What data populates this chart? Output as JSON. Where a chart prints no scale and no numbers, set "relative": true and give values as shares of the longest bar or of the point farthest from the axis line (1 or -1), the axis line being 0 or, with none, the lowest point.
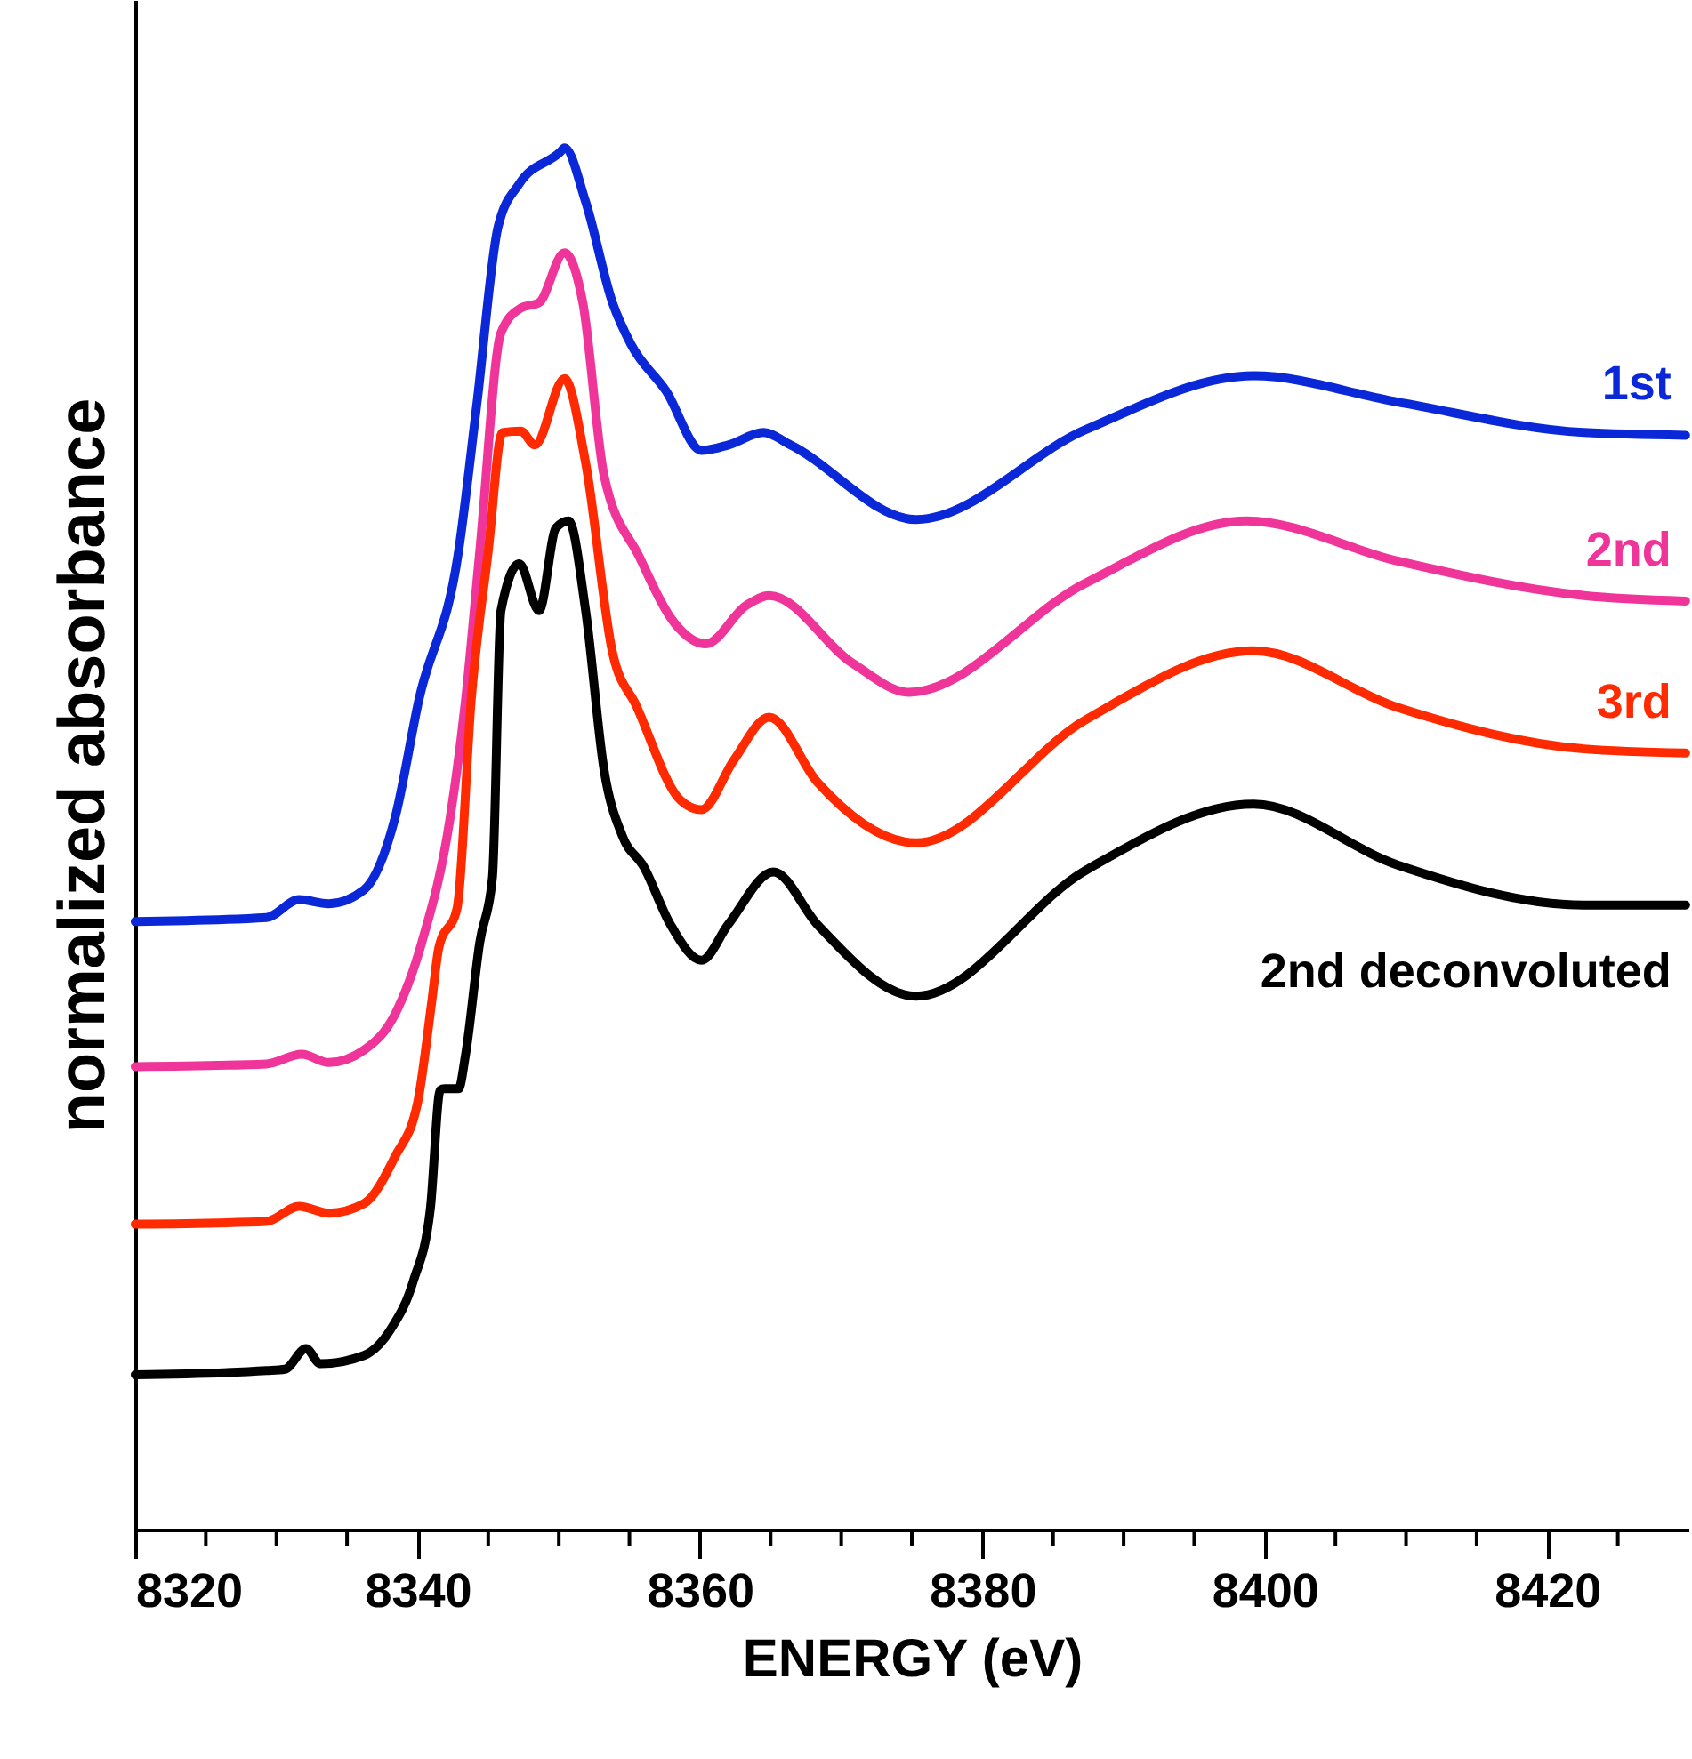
{
  "chart_data": {
    "type": "line",
    "relative": true,
    "xlabel": "ENERGY (eV)",
    "ylabel": "normalized absorbance",
    "xlim": [
      8320,
      8430
    ],
    "xticks": [
      8320,
      {
        "value": 8325,
        "label": null
      },
      {
        "value": 8330,
        "label": null
      },
      {
        "value": 8335,
        "label": null
      },
      8340,
      {
        "value": 8345,
        "label": null
      },
      {
        "value": 8350,
        "label": null
      },
      {
        "value": 8355,
        "label": null
      },
      8360,
      {
        "value": 8365,
        "label": null
      },
      {
        "value": 8370,
        "label": null
      },
      {
        "value": 8375,
        "label": null
      },
      8380,
      {
        "value": 8385,
        "label": null
      },
      {
        "value": 8390,
        "label": null
      },
      {
        "value": 8395,
        "label": null
      },
      8400,
      {
        "value": 8405,
        "label": null
      },
      {
        "value": 8410,
        "label": null
      },
      {
        "value": 8415,
        "label": null
      },
      8420,
      {
        "value": 8425,
        "label": null
      }
    ],
    "grid": false,
    "marker": "none",
    "line_style": "solid",
    "tick_labels": "x",
    "series": [
      {
        "name": "1st",
        "color": "#0a28d8",
        "x": [
          8320,
          8329.3,
          8331.6,
          8333.7,
          8336.2,
          8338.4,
          8340.1,
          8342.9,
          8344.2,
          8345.7,
          8347.2,
          8350.1,
          8350.4,
          8351.9,
          8353.8,
          8355.1,
          8357.6,
          8360.1,
          8362.0,
          8364.5,
          8366.4,
          8375.3,
          8387.3,
          8399.2,
          8409.4,
          8422.6,
          8429.8
        ],
        "values": [
          0.44,
          0.443,
          0.456,
          0.453,
          0.463,
          0.515,
          0.601,
          0.708,
          0.815,
          0.943,
          0.974,
          0.997,
          1.0,
          0.961,
          0.888,
          0.858,
          0.824,
          0.781,
          0.785,
          0.794,
          0.785,
          0.731,
          0.796,
          0.835,
          0.816,
          0.794,
          0.792
        ]
      },
      {
        "name": "2nd",
        "color": "#f0359a",
        "x": [
          8320,
          8329.3,
          8331.8,
          8333.7,
          8336.2,
          8338.4,
          8340.3,
          8342.3,
          8343.4,
          8344.4,
          8345.9,
          8347.3,
          8348.6,
          8350.4,
          8351.7,
          8353.2,
          8355.7,
          8358.2,
          8360.4,
          8363.3,
          8364.9,
          8370.8,
          8374.8,
          8387.3,
          8398.7,
          8409.4,
          8422.6,
          8429.8
        ],
        "values": [
          0.335,
          0.337,
          0.344,
          0.338,
          0.347,
          0.373,
          0.425,
          0.515,
          0.601,
          0.708,
          0.866,
          0.884,
          0.888,
          0.924,
          0.888,
          0.763,
          0.704,
          0.656,
          0.641,
          0.669,
          0.676,
          0.627,
          0.606,
          0.685,
          0.73,
          0.701,
          0.676,
          0.672
        ]
      },
      {
        "name": "3rd",
        "color": "#ff2a00",
        "x": [
          8320,
          8329.3,
          8331.6,
          8333.7,
          8336.2,
          8338.4,
          8340.0,
          8341.0,
          8341.5,
          8342.8,
          8343.8,
          8345.0,
          8346.0,
          8347.3,
          8348.3,
          8350.4,
          8351.9,
          8353.8,
          8355.5,
          8358.6,
          8360.1,
          8362.4,
          8364.9,
          8368.3,
          8375.3,
          8387.3,
          8399.2,
          8409.4,
          8422.6,
          8429.8
        ],
        "values": [
          0.221,
          0.223,
          0.234,
          0.229,
          0.236,
          0.27,
          0.309,
          0.382,
          0.421,
          0.45,
          0.601,
          0.708,
          0.794,
          0.795,
          0.785,
          0.833,
          0.772,
          0.635,
          0.596,
          0.528,
          0.521,
          0.557,
          0.588,
          0.541,
          0.497,
          0.586,
          0.636,
          0.595,
          0.565,
          0.562
        ]
      },
      {
        "name": "2nd deconvoluted",
        "color": "#000000",
        "x": [
          8320,
          8329.3,
          8330.6,
          8332.1,
          8333.1,
          8336.2,
          8338.1,
          8339.7,
          8340.9,
          8341.6,
          8341.9,
          8342.9,
          8343.4,
          8344.4,
          8345.3,
          8345.9,
          8347.2,
          8348.6,
          8349.8,
          8350.7,
          8351.9,
          8353.2,
          8354.5,
          8356.0,
          8357.9,
          8360.1,
          8362.0,
          8365.2,
          8368.3,
          8375.3,
          8387.3,
          8399.2,
          8409.4,
          8422.6,
          8429.8
        ],
        "values": [
          0.112,
          0.115,
          0.116,
          0.131,
          0.12,
          0.126,
          0.145,
          0.18,
          0.232,
          0.318,
          0.319,
          0.319,
          0.344,
          0.425,
          0.472,
          0.665,
          0.699,
          0.665,
          0.725,
          0.73,
          0.665,
          0.55,
          0.502,
          0.48,
          0.438,
          0.412,
          0.438,
          0.476,
          0.438,
          0.386,
          0.477,
          0.525,
          0.481,
          0.452,
          0.452
        ]
      }
    ]
  }
}
